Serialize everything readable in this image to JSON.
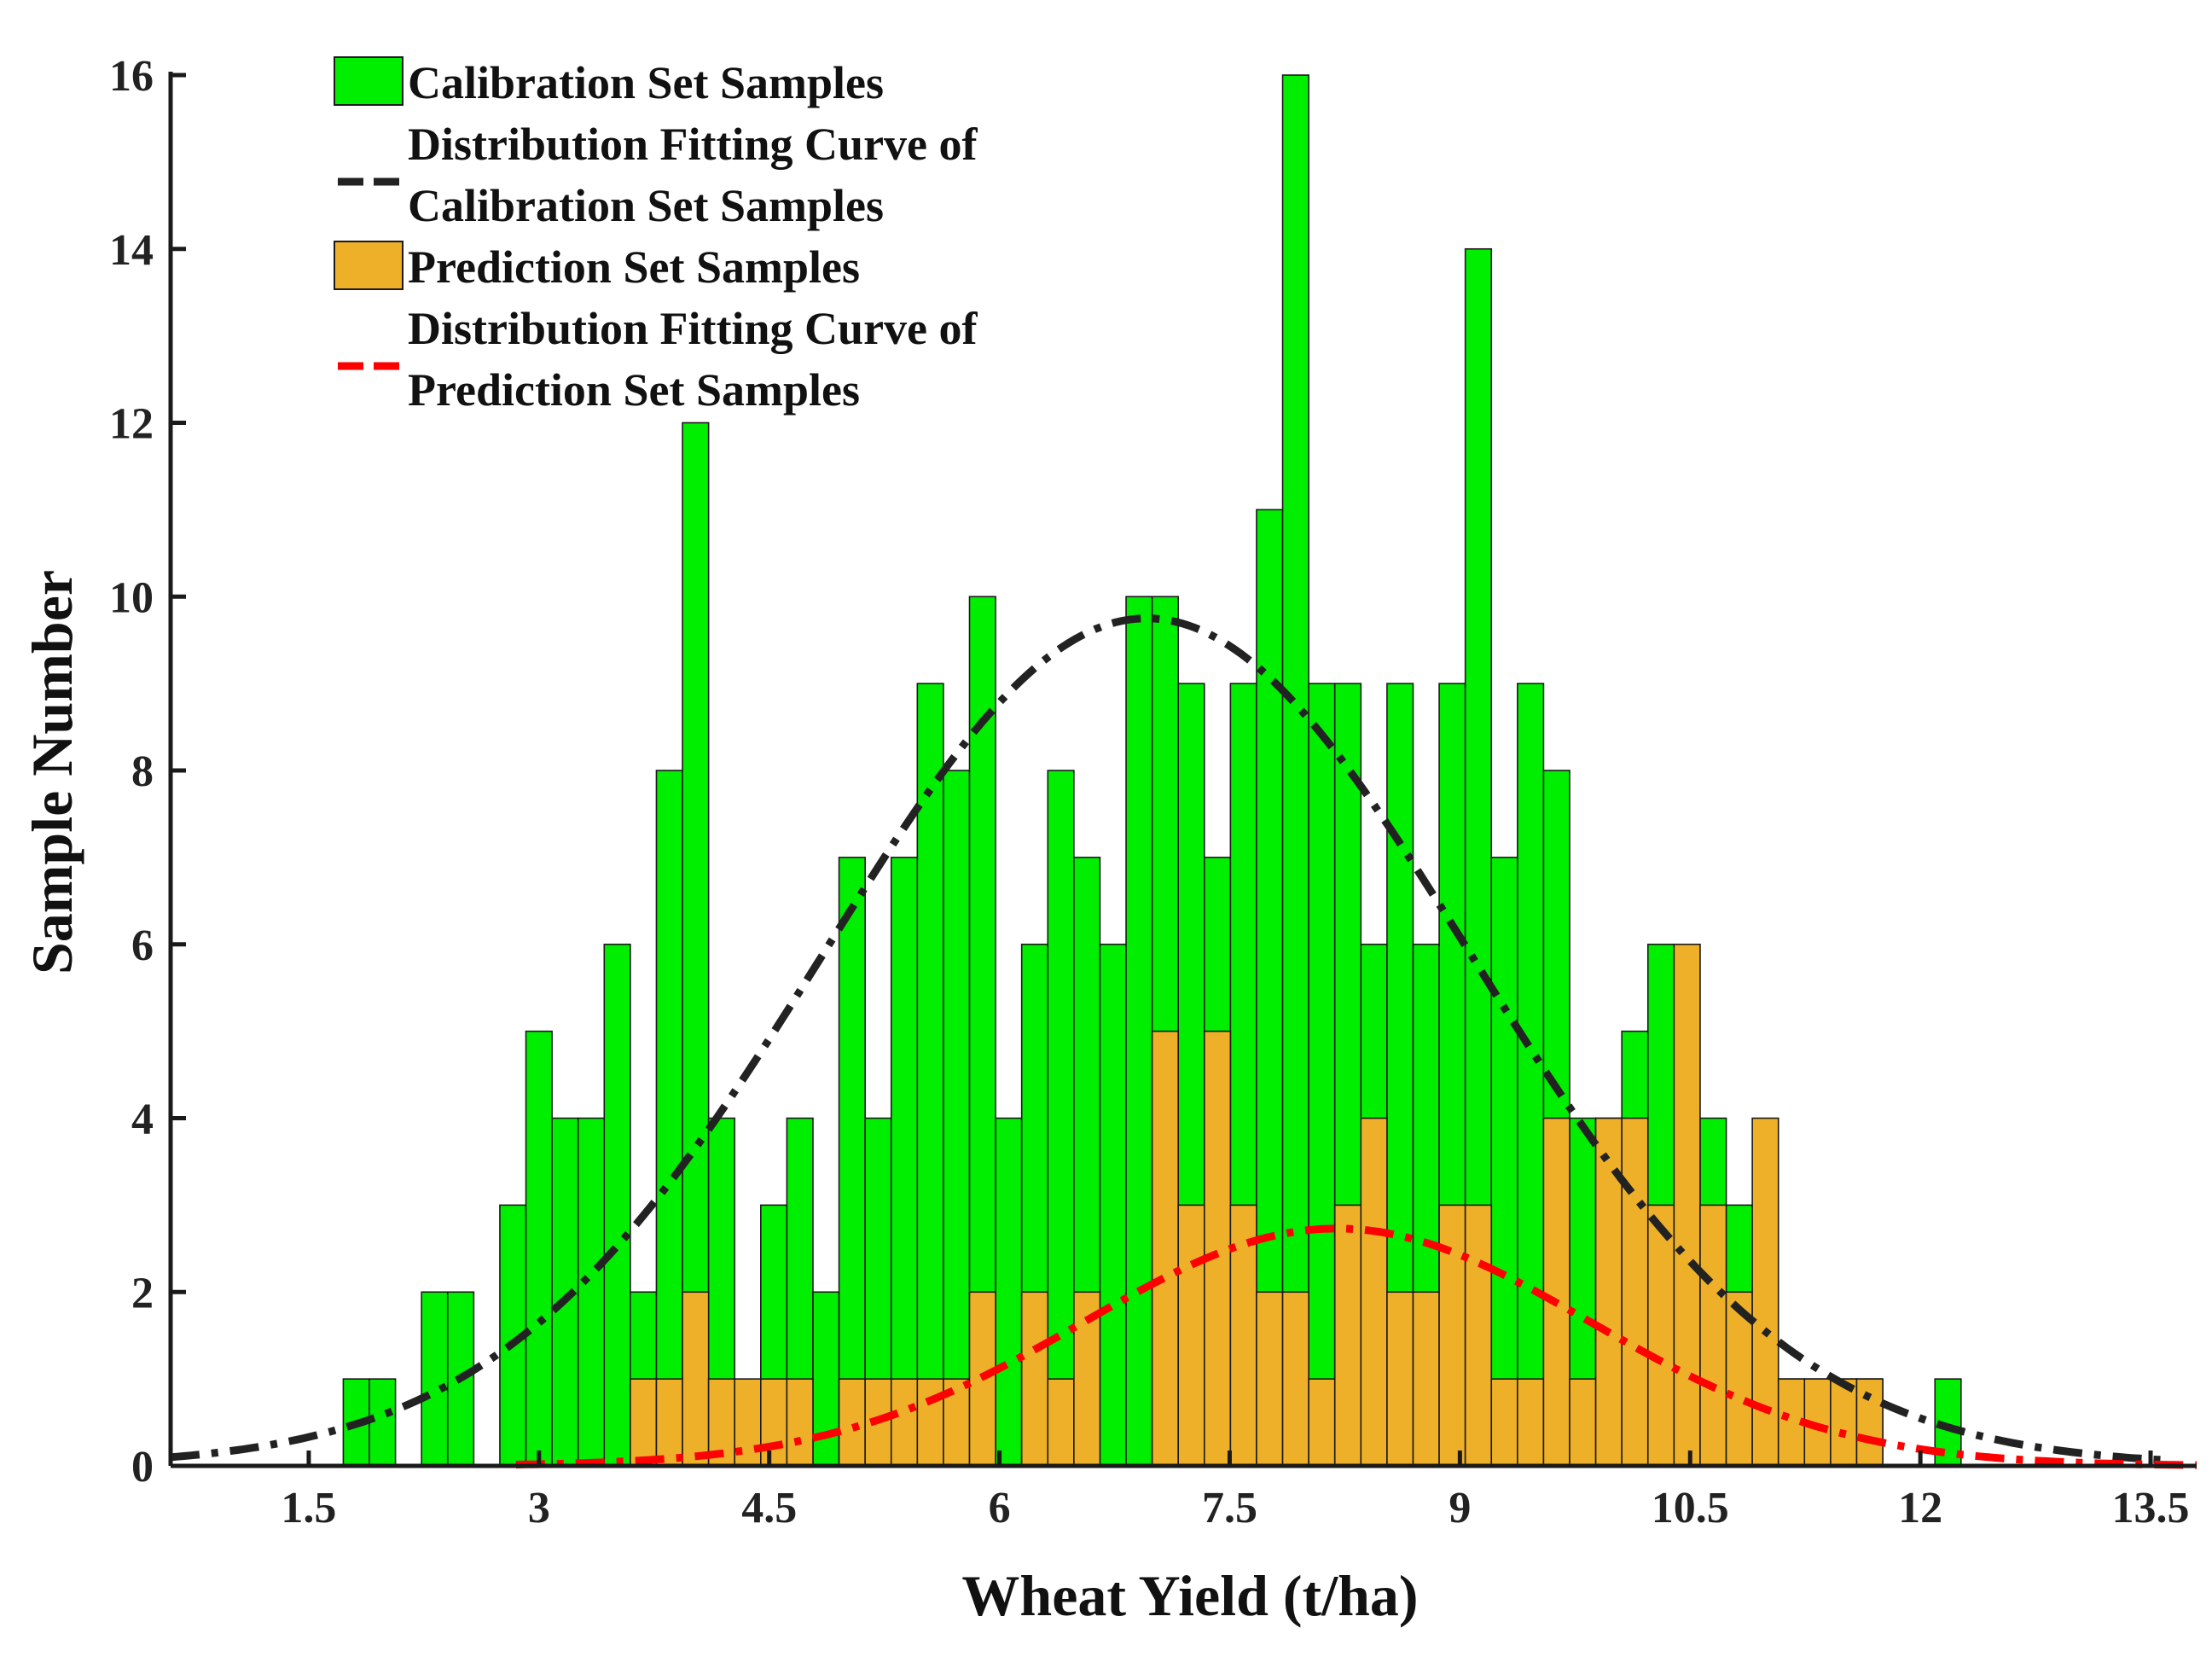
{
  "chart_data": {
    "type": "bar",
    "title": "",
    "xlabel": "Wheat Yield (t/ha)",
    "ylabel": "Sample Number",
    "xlim": [
      0.6,
      13.8
    ],
    "ylim": [
      0,
      16
    ],
    "bin_width": 0.17,
    "xticks": [
      1.5,
      3,
      4.5,
      6,
      7.5,
      9,
      10.5,
      12,
      13.5
    ],
    "xtick_labels": [
      "1.5",
      "3",
      "4.5",
      "6",
      "7.5",
      "9",
      "10.5",
      "12",
      "13.5"
    ],
    "yticks": [
      0,
      2,
      4,
      6,
      8,
      10,
      12,
      14,
      16
    ],
    "ytick_labels": [
      "0",
      "2",
      "4",
      "6",
      "8",
      "10",
      "12",
      "14",
      "16"
    ],
    "legend_position": "top-left",
    "series": [
      {
        "name": "Calibration Set Samples",
        "type": "bar",
        "color": "#00ee00",
        "bins": [
          [
            1.81,
            1
          ],
          [
            1.98,
            1
          ],
          [
            2.32,
            2
          ],
          [
            2.49,
            2
          ],
          [
            2.83,
            3
          ],
          [
            3.0,
            5
          ],
          [
            3.17,
            4
          ],
          [
            3.34,
            4
          ],
          [
            3.51,
            6
          ],
          [
            3.68,
            2
          ],
          [
            3.85,
            8
          ],
          [
            4.02,
            12
          ],
          [
            4.19,
            4
          ],
          [
            4.53,
            3
          ],
          [
            4.7,
            4
          ],
          [
            4.87,
            2
          ],
          [
            5.04,
            7
          ],
          [
            5.21,
            4
          ],
          [
            5.38,
            7
          ],
          [
            5.55,
            9
          ],
          [
            5.72,
            8
          ],
          [
            5.89,
            10
          ],
          [
            6.06,
            4
          ],
          [
            6.23,
            6
          ],
          [
            6.4,
            8
          ],
          [
            6.57,
            7
          ],
          [
            6.74,
            6
          ],
          [
            6.91,
            10
          ],
          [
            7.08,
            10
          ],
          [
            7.25,
            9
          ],
          [
            7.42,
            7
          ],
          [
            7.59,
            9
          ],
          [
            7.76,
            11
          ],
          [
            7.93,
            16
          ],
          [
            8.1,
            9
          ],
          [
            8.27,
            9
          ],
          [
            8.44,
            6
          ],
          [
            8.61,
            9
          ],
          [
            8.78,
            6
          ],
          [
            8.95,
            9
          ],
          [
            9.12,
            14
          ],
          [
            9.29,
            7
          ],
          [
            9.46,
            9
          ],
          [
            9.63,
            8
          ],
          [
            9.8,
            4
          ],
          [
            9.97,
            4
          ],
          [
            10.14,
            5
          ],
          [
            10.31,
            6
          ],
          [
            10.48,
            3
          ],
          [
            10.65,
            4
          ],
          [
            10.82,
            3
          ],
          [
            10.99,
            3
          ],
          [
            11.16,
            1
          ],
          [
            11.33,
            1
          ],
          [
            11.5,
            1
          ],
          [
            11.67,
            1
          ],
          [
            12.18,
            1
          ]
        ]
      },
      {
        "name": "Prediction Set Samples",
        "type": "bar",
        "color": "#eeb029",
        "bins": [
          [
            3.68,
            1
          ],
          [
            3.85,
            1
          ],
          [
            4.02,
            2
          ],
          [
            4.19,
            1
          ],
          [
            4.36,
            1
          ],
          [
            4.53,
            1
          ],
          [
            4.7,
            1
          ],
          [
            5.04,
            1
          ],
          [
            5.21,
            1
          ],
          [
            5.38,
            1
          ],
          [
            5.55,
            1
          ],
          [
            5.72,
            1
          ],
          [
            5.89,
            2
          ],
          [
            6.23,
            2
          ],
          [
            6.4,
            1
          ],
          [
            6.57,
            2
          ],
          [
            7.08,
            5
          ],
          [
            7.25,
            3
          ],
          [
            7.42,
            5
          ],
          [
            7.59,
            3
          ],
          [
            7.76,
            2
          ],
          [
            7.93,
            2
          ],
          [
            8.1,
            1
          ],
          [
            8.27,
            3
          ],
          [
            8.44,
            4
          ],
          [
            8.61,
            2
          ],
          [
            8.78,
            2
          ],
          [
            8.95,
            3
          ],
          [
            9.12,
            3
          ],
          [
            9.29,
            1
          ],
          [
            9.46,
            1
          ],
          [
            9.63,
            4
          ],
          [
            9.8,
            1
          ],
          [
            9.97,
            4
          ],
          [
            10.14,
            4
          ],
          [
            10.31,
            3
          ],
          [
            10.48,
            6
          ],
          [
            10.65,
            3
          ],
          [
            10.82,
            2
          ],
          [
            10.99,
            4
          ],
          [
            11.16,
            1
          ],
          [
            11.33,
            1
          ],
          [
            11.5,
            1
          ],
          [
            11.67,
            1
          ]
        ]
      },
      {
        "name": "Distribution Fitting Curve of Calibration Set Samples",
        "type": "line",
        "style": "dash-dot",
        "color": "#222222",
        "fit": {
          "distribution": "normal",
          "mean": 6.96,
          "sd": 2.1,
          "peak": 9.75
        },
        "x_range": [
          0.6,
          13.6
        ]
      },
      {
        "name": "Distribution Fitting Curve of Prediction Set Samples",
        "type": "line",
        "style": "dash-dot",
        "color": "#ff0000",
        "fit": {
          "distribution": "normal",
          "mean": 8.2,
          "sd": 1.65,
          "peak": 2.73
        },
        "x_range": [
          2.85,
          13.8
        ]
      }
    ],
    "legend": [
      {
        "lines": [
          "Calibration Set Samples"
        ],
        "marker": "patch",
        "color": "#00ee00"
      },
      {
        "lines": [
          "Distribution Fitting Curve of",
          "Calibration Set Samples"
        ],
        "marker": "line",
        "color": "#222222"
      },
      {
        "lines": [
          "Prediction Set Samples"
        ],
        "marker": "patch",
        "color": "#eeb029"
      },
      {
        "lines": [
          "Distribution Fitting Curve of",
          "Prediction Set Samples"
        ],
        "marker": "line",
        "color": "#ff0000"
      }
    ]
  }
}
